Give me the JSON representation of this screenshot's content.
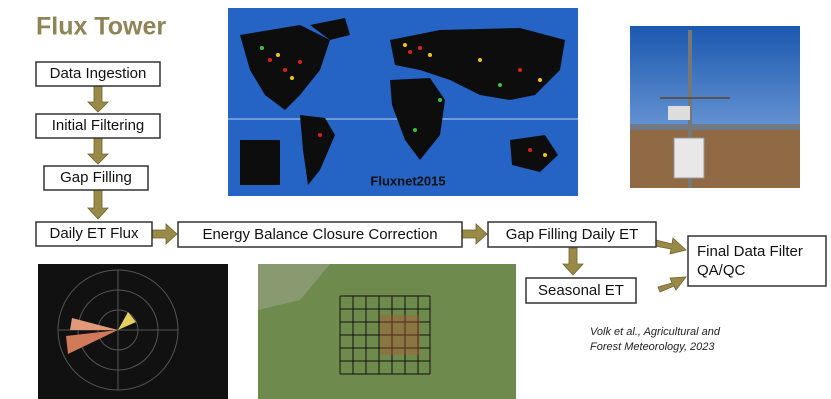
{
  "title": "Flux Tower",
  "nodes": [
    {
      "label": "Data Ingestion"
    },
    {
      "label": "Initial Filtering"
    },
    {
      "label": "Gap Filling"
    },
    {
      "label": "Daily ET Flux"
    },
    {
      "label": "Energy Balance Closure Correction"
    },
    {
      "label": "Gap Filling Daily ET"
    },
    {
      "label": "Seasonal ET"
    },
    {
      "lines": [
        "Final Data Filter",
        "QA/QC"
      ]
    }
  ],
  "map": {
    "label": "Fluxnet2015"
  },
  "citation": [
    "Volk et al., Agricultural and",
    "Forest Meteorology, 2023"
  ]
}
